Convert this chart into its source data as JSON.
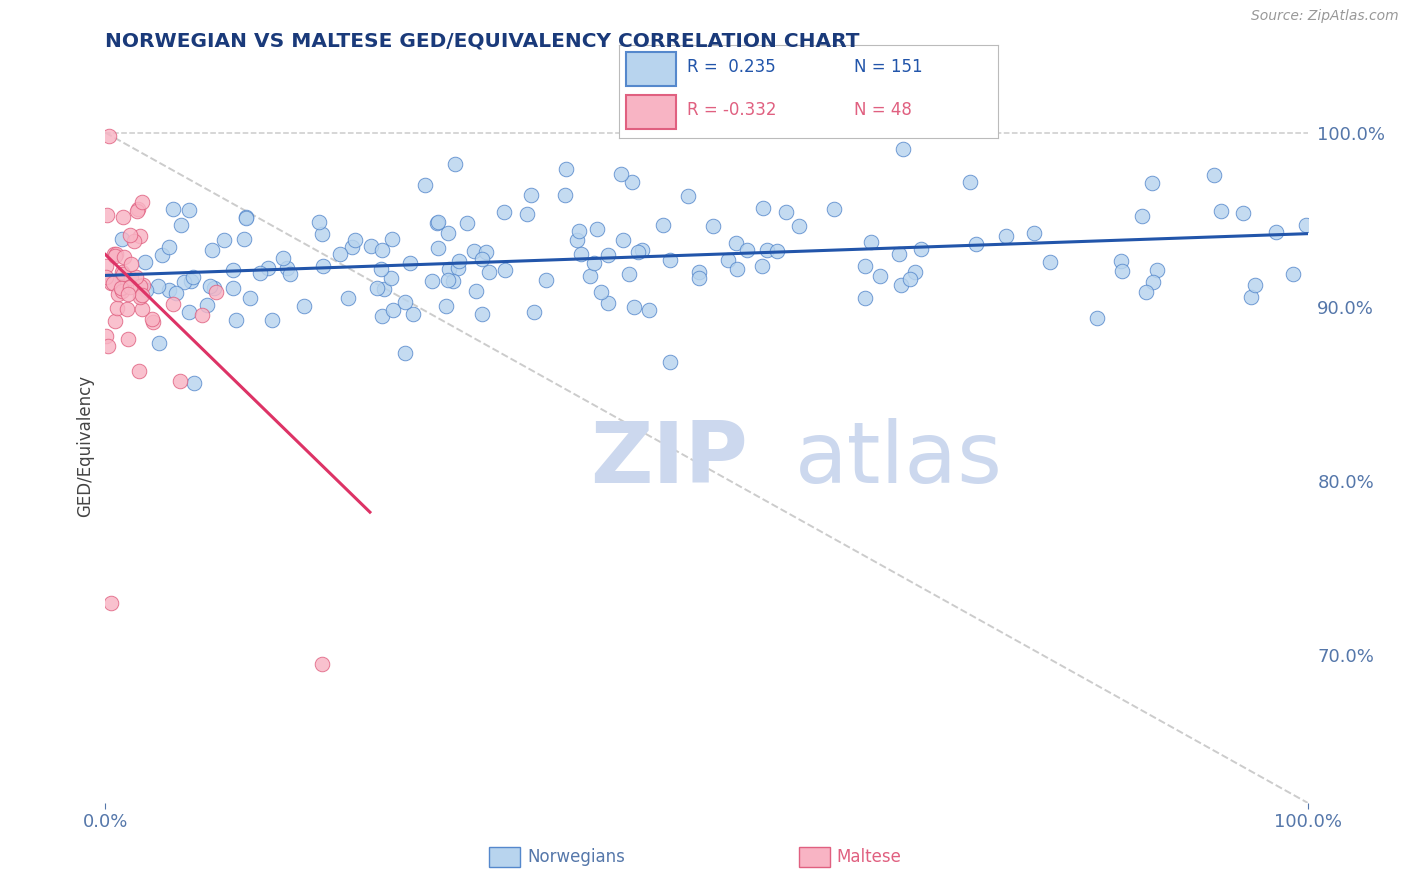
{
  "title": "NORWEGIAN VS MALTESE GED/EQUIVALENCY CORRELATION CHART",
  "ylabel": "GED/Equivalency",
  "source_text": "Source: ZipAtlas.com",
  "x_min": 0.0,
  "x_max": 1.0,
  "y_min": 0.615,
  "y_max": 1.025,
  "right_yticks": [
    0.7,
    0.8,
    0.9,
    1.0
  ],
  "right_yticklabels": [
    "70.0%",
    "80.0%",
    "90.0%",
    "100.0%"
  ],
  "norwegian_color": "#b8d4ee",
  "maltese_color": "#f8b4c4",
  "norwegian_edge_color": "#5588cc",
  "maltese_edge_color": "#e06080",
  "norwegian_line_color": "#2255aa",
  "maltese_line_color": "#dd3366",
  "diagonal_color": "#cccccc",
  "background_color": "#ffffff",
  "title_color": "#1a3a7a",
  "axis_color": "#5577aa",
  "legend_r1": "R =  0.235",
  "legend_n1": "N = 151",
  "legend_r2": "R = -0.332",
  "legend_n2": "N = 48",
  "watermark_color": "#ccd8ee",
  "nor_trend_x0": 0.0,
  "nor_trend_y0": 0.918,
  "nor_trend_x1": 1.0,
  "nor_trend_y1": 0.942,
  "mal_trend_x0": 0.0,
  "mal_trend_y0": 0.93,
  "mal_trend_x1": 0.22,
  "mal_trend_y1": 0.782
}
